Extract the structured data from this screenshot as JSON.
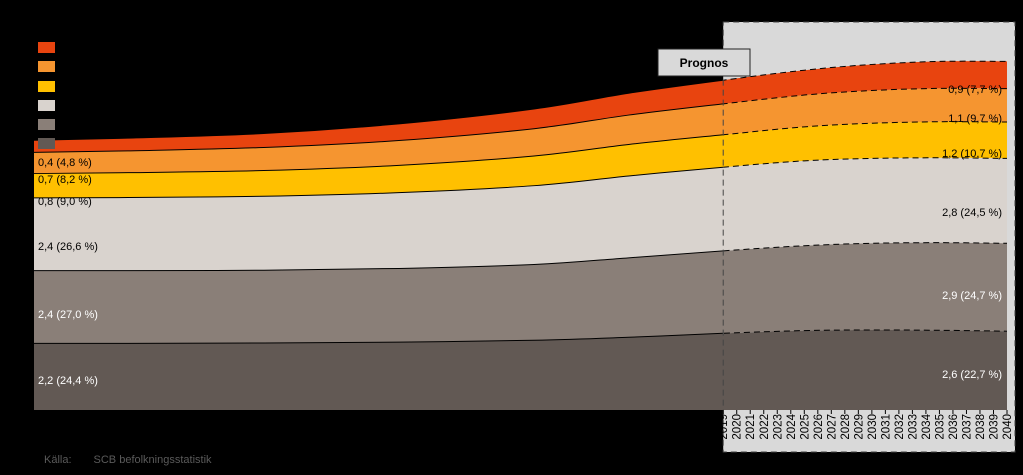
{
  "source": {
    "label": "Källa:",
    "text": "SCB befolkningsstatistik"
  },
  "colors": {
    "background": "#000000",
    "forecast_panel": "#d9d9d9",
    "series": [
      "#e8440f",
      "#f59530",
      "#ffc000",
      "#d9d3ce",
      "#8a7f78",
      "#625954"
    ]
  },
  "chart_data": {
    "type": "area",
    "stacked": true,
    "annotation": "Prognos",
    "forecast_start": 2019,
    "xlim": [
      1968,
      2040
    ],
    "ylim": [
      0,
      12.8
    ],
    "x": [
      1968,
      1975,
      1985,
      1995,
      2005,
      2012,
      2019,
      2025,
      2030,
      2035,
      2040
    ],
    "x_ticks": [
      2019,
      2020,
      2021,
      2022,
      2023,
      2024,
      2025,
      2026,
      2027,
      2028,
      2029,
      2030,
      2031,
      2032,
      2033,
      2034,
      2035,
      2036,
      2037,
      2038,
      2039,
      2040
    ],
    "series": [
      {
        "color": "#625954",
        "label_left": "2,2 (24,4 %)",
        "label_right": "2,6 (22,7 %)",
        "values": [
          2.2,
          2.2,
          2.21,
          2.24,
          2.3,
          2.4,
          2.53,
          2.62,
          2.64,
          2.63,
          2.6
        ]
      },
      {
        "color": "#8a7f78",
        "label_left": "2,4 (27,0 %)",
        "label_right": "2,9 (24,7 %)",
        "values": [
          2.4,
          2.4,
          2.4,
          2.43,
          2.5,
          2.62,
          2.72,
          2.8,
          2.86,
          2.89,
          2.9
        ]
      },
      {
        "color": "#d9d3ce",
        "label_left": "2,4 (26,6 %)",
        "label_right": "2,8 (24,5 %)",
        "values": [
          2.4,
          2.41,
          2.44,
          2.5,
          2.6,
          2.7,
          2.76,
          2.8,
          2.8,
          2.8,
          2.8
        ]
      },
      {
        "color": "#ffc000",
        "label_left": "0,8 (9,0 %)",
        "label_right": "1,2 (10,7 %)",
        "values": [
          0.8,
          0.82,
          0.85,
          0.9,
          0.98,
          1.04,
          1.07,
          1.12,
          1.16,
          1.19,
          1.2
        ]
      },
      {
        "color": "#f59530",
        "label_left": "0,7 (8,2 %)",
        "label_right": "1,1 (9,7 %)",
        "values": [
          0.7,
          0.72,
          0.76,
          0.82,
          0.9,
          0.97,
          1.02,
          1.05,
          1.08,
          1.1,
          1.1
        ]
      },
      {
        "color": "#e8440f",
        "label_left": "0,4 (4,8 %)",
        "label_right": "0,9 (7,7 %)",
        "values": [
          0.4,
          0.42,
          0.46,
          0.55,
          0.65,
          0.72,
          0.78,
          0.82,
          0.86,
          0.89,
          0.9
        ]
      }
    ]
  }
}
